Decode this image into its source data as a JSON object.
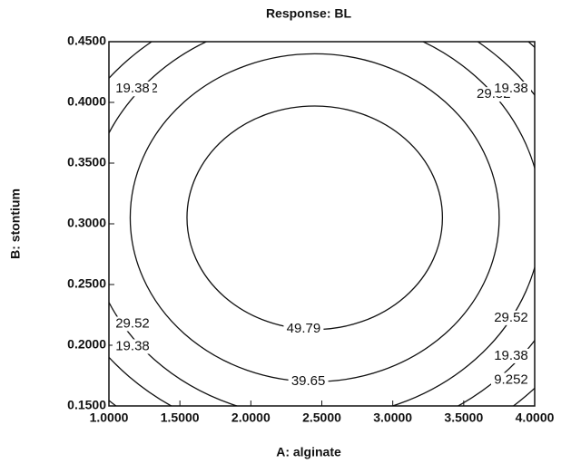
{
  "chart_data": {
    "type": "contour",
    "title": "Response: BL",
    "x_label": "A: alginate",
    "y_label": "B: stontium",
    "xlim": [
      1.0,
      4.0
    ],
    "ylim": [
      0.15,
      0.45
    ],
    "xticks": [
      {
        "value": 1.0,
        "label": "1.0000"
      },
      {
        "value": 1.5,
        "label": "1.5000"
      },
      {
        "value": 2.0,
        "label": "2.0000"
      },
      {
        "value": 2.5,
        "label": "2.5000"
      },
      {
        "value": 3.0,
        "label": "3.0000"
      },
      {
        "value": 3.5,
        "label": "3.5000"
      },
      {
        "value": 4.0,
        "label": "4.0000"
      }
    ],
    "yticks": [
      {
        "value": 0.15,
        "label": "0.1500"
      },
      {
        "value": 0.2,
        "label": "0.2000"
      },
      {
        "value": 0.25,
        "label": "0.2500"
      },
      {
        "value": 0.3,
        "label": "0.3000"
      },
      {
        "value": 0.35,
        "label": "0.3500"
      },
      {
        "value": 0.4,
        "label": "0.4000"
      },
      {
        "value": 0.45,
        "label": "0.4500"
      }
    ],
    "center": [
      2.45,
      0.305
    ],
    "contours": [
      {
        "level": 49.79,
        "rx": 0.9,
        "ry": 0.092
      },
      {
        "level": 39.65,
        "rx": 1.3,
        "ry": 0.135
      },
      {
        "level": 29.52,
        "rx": 1.6,
        "ry": 0.165
      },
      {
        "level": 19.38,
        "rx": 1.85,
        "ry": 0.185
      },
      {
        "level": 9.252,
        "rx": 2.1,
        "ry": 0.208
      }
    ],
    "color": "#111111"
  }
}
